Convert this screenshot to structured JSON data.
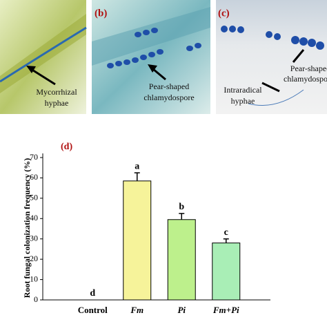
{
  "panels": [
    {
      "label": null,
      "annotation": [
        "Mycorrhizal",
        "hyphae"
      ]
    },
    {
      "label": "(b)",
      "annotation": [
        "Pear-shaped",
        "chlamydospore"
      ]
    },
    {
      "label": "(c)",
      "annotation": [
        "Intraradical",
        "hyphae"
      ],
      "annotation2": [
        "Pear-shaped",
        "chlamydospores"
      ]
    }
  ],
  "chart_data": {
    "type": "bar",
    "panel_label": "(d)",
    "y_label": "Root fungal colonization frequency (%)",
    "categories": [
      "Control",
      "Fm",
      "Pi",
      "Fm+Pi"
    ],
    "values": [
      0,
      58.5,
      39.5,
      28
    ],
    "errors": [
      0,
      4,
      3,
      2
    ],
    "letters": [
      "d",
      "a",
      "b",
      "c"
    ],
    "colors": [
      "#ffffff",
      "#f6f39a",
      "#bdf08c",
      "#a9eeb6"
    ],
    "ylim": [
      0,
      70
    ],
    "yticks": [
      0,
      10,
      20,
      30,
      40,
      50,
      60,
      70
    ]
  }
}
